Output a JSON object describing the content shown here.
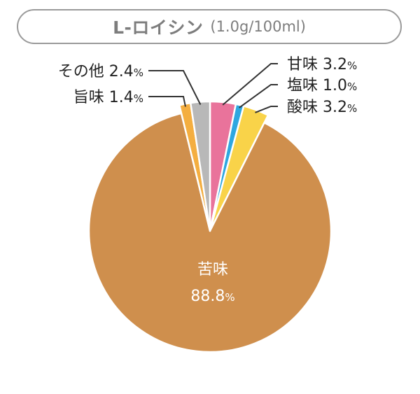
{
  "chart_data": {
    "type": "pie",
    "title": "L-ロイシン",
    "subtitle": "(1.0g/100ml)",
    "slices": [
      {
        "label": "甘味",
        "value": 3.2,
        "display": "3.2",
        "unit": "%",
        "color": "#E9739B"
      },
      {
        "label": "塩味",
        "value": 1.0,
        "display": "1.0",
        "unit": "%",
        "color": "#2EA7E0"
      },
      {
        "label": "酸味",
        "value": 3.2,
        "display": "3.2",
        "unit": "%",
        "color": "#F9D349"
      },
      {
        "label": "苦味",
        "value": 88.8,
        "display": "88.8",
        "unit": "%",
        "color": "#CF8F4D"
      },
      {
        "label": "旨味",
        "value": 1.4,
        "display": "1.4",
        "unit": "%",
        "color": "#F4AE40"
      },
      {
        "label": "その他",
        "value": 2.4,
        "display": "2.4",
        "unit": "%",
        "color": "#B8B8B8"
      }
    ]
  }
}
